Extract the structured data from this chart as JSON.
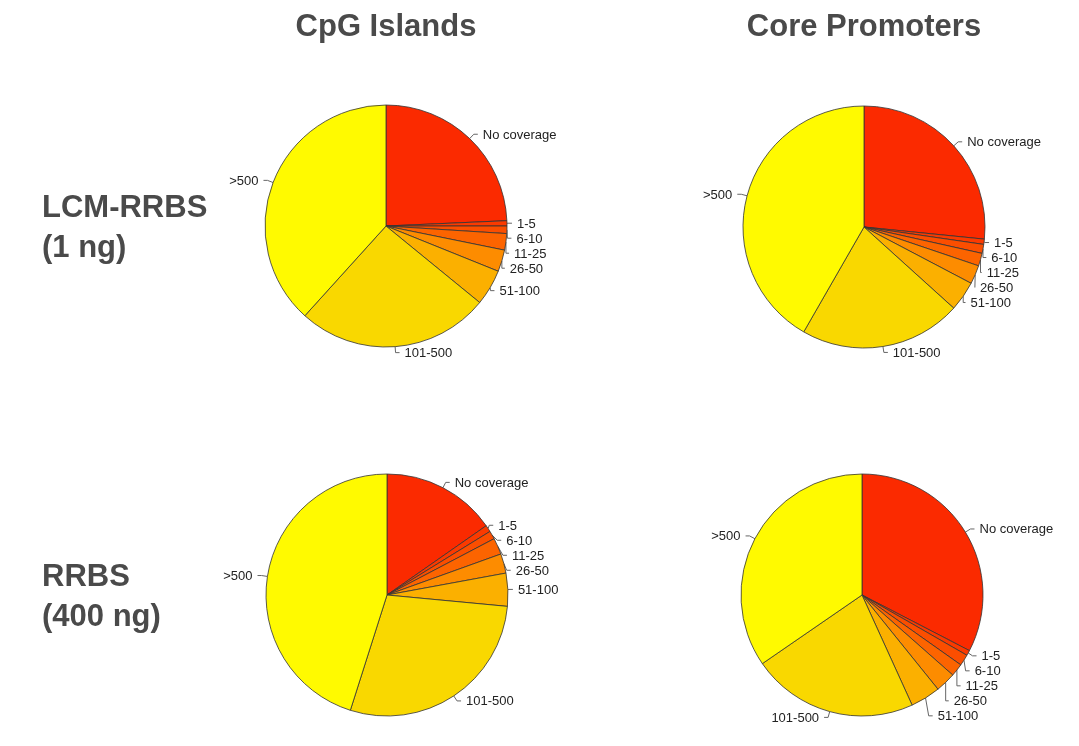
{
  "chart_data": [
    {
      "type": "pie",
      "title": "CpG Islands",
      "ylabel": "LCM-RRBS\n(1 ng)",
      "categories": [
        "No coverage",
        "1-5",
        "6-10",
        "11-25",
        "26-50",
        "51-100",
        "101-500",
        ">500"
      ],
      "values": [
        24.3,
        0.7,
        1.0,
        2.2,
        2.9,
        4.8,
        25.8,
        38.3
      ],
      "colors": [
        "#fb2a00",
        "#fb3a00",
        "#fb4e00",
        "#fc6400",
        "#fd8c00",
        "#fbb000",
        "#f9d800",
        "#fffa00"
      ]
    },
    {
      "type": "pie",
      "title": "Core Promoters",
      "categories": [
        "No coverage",
        "1-5",
        "6-10",
        "11-25",
        "26-50",
        "51-100",
        "101-500",
        ">500"
      ],
      "values": [
        26.6,
        0.7,
        1.2,
        1.7,
        2.5,
        4.0,
        21.6,
        41.7
      ],
      "colors": [
        "#fb2a00",
        "#fb3a00",
        "#fb4e00",
        "#fc6400",
        "#fd8c00",
        "#fbb000",
        "#f9d800",
        "#fffa00"
      ]
    },
    {
      "type": "pie",
      "ylabel": "RRBS\n(400 ng)",
      "categories": [
        "No coverage",
        "1-5",
        "6-10",
        "11-25",
        "26-50",
        "51-100",
        "101-500",
        ">500"
      ],
      "values": [
        15.3,
        0.9,
        1.1,
        2.2,
        2.6,
        4.4,
        28.4,
        45.1
      ],
      "colors": [
        "#fb2a00",
        "#fb3a00",
        "#fb4e00",
        "#fc6400",
        "#fd8c00",
        "#fbb000",
        "#f9d800",
        "#fffa00"
      ]
    },
    {
      "type": "pie",
      "categories": [
        "No coverage",
        "1-5",
        "6-10",
        "11-25",
        "26-50",
        "51-100",
        "101-500",
        ">500"
      ],
      "values": [
        32.6,
        0.7,
        1.5,
        1.7,
        2.7,
        4.0,
        22.2,
        34.6
      ],
      "colors": [
        "#fb2a00",
        "#fb3a00",
        "#fb4e00",
        "#fc6400",
        "#fd8c00",
        "#fbb000",
        "#f9d800",
        "#fffa00"
      ]
    }
  ]
}
